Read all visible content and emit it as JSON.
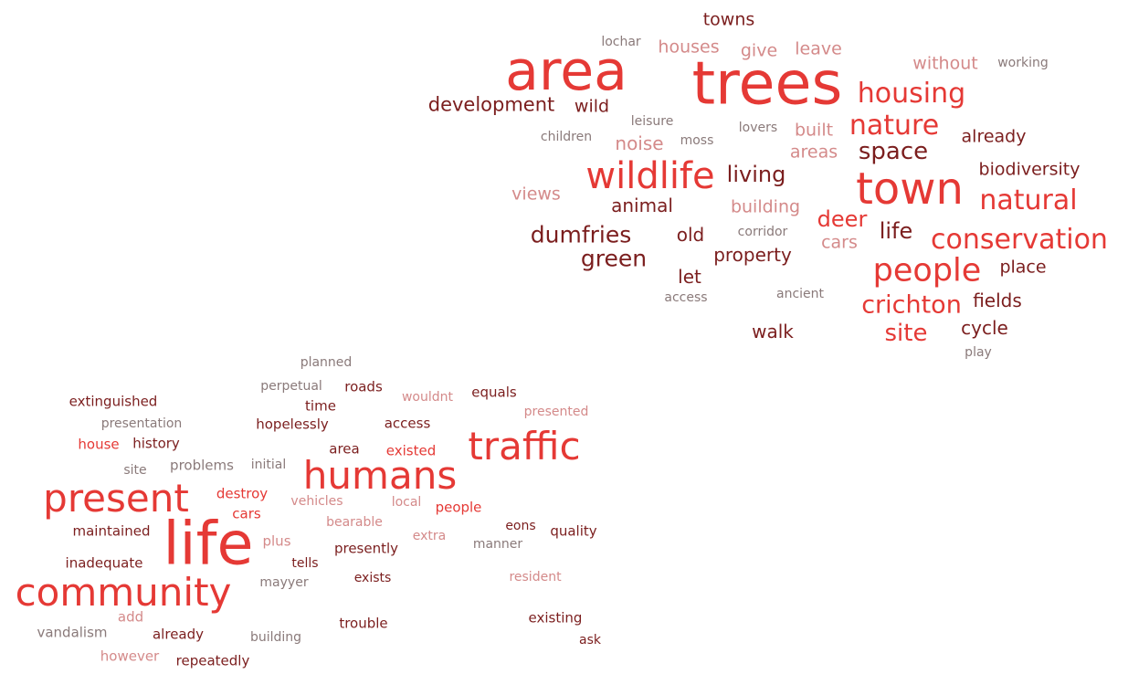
{
  "palette": {
    "red": "#e53935",
    "maroon": "#7b1e1e",
    "pink": "#d48a8a",
    "grey": "#8a7a7a"
  },
  "clusters": [
    {
      "name": "cluster-1",
      "words": [
        {
          "text": "towns",
          "weight": 0.18,
          "tone": "maroon"
        },
        {
          "text": "lochar",
          "weight": 0.1,
          "tone": "grey"
        },
        {
          "text": "houses",
          "weight": 0.22,
          "tone": "pink"
        },
        {
          "text": "give",
          "weight": 0.2,
          "tone": "pink"
        },
        {
          "text": "leave",
          "weight": 0.2,
          "tone": "pink"
        },
        {
          "text": "without",
          "weight": 0.2,
          "tone": "pink"
        },
        {
          "text": "working",
          "weight": 0.1,
          "tone": "grey"
        },
        {
          "text": "area",
          "weight": 0.95,
          "tone": "red"
        },
        {
          "text": "trees",
          "weight": 1.0,
          "tone": "red"
        },
        {
          "text": "housing",
          "weight": 0.4,
          "tone": "red"
        },
        {
          "text": "development",
          "weight": 0.25,
          "tone": "maroon"
        },
        {
          "text": "wild",
          "weight": 0.22,
          "tone": "maroon"
        },
        {
          "text": "leisure",
          "weight": 0.1,
          "tone": "grey"
        },
        {
          "text": "lovers",
          "weight": 0.1,
          "tone": "grey"
        },
        {
          "text": "built",
          "weight": 0.2,
          "tone": "pink"
        },
        {
          "text": "nature",
          "weight": 0.4,
          "tone": "red"
        },
        {
          "text": "already",
          "weight": 0.2,
          "tone": "maroon"
        },
        {
          "text": "children",
          "weight": 0.1,
          "tone": "grey"
        },
        {
          "text": "noise",
          "weight": 0.25,
          "tone": "pink"
        },
        {
          "text": "moss",
          "weight": 0.1,
          "tone": "grey"
        },
        {
          "text": "areas",
          "weight": 0.22,
          "tone": "pink"
        },
        {
          "text": "space",
          "weight": 0.3,
          "tone": "maroon"
        },
        {
          "text": "wildlife",
          "weight": 0.6,
          "tone": "red"
        },
        {
          "text": "living",
          "weight": 0.25,
          "tone": "maroon"
        },
        {
          "text": "town",
          "weight": 0.75,
          "tone": "red"
        },
        {
          "text": "biodiversity",
          "weight": 0.2,
          "tone": "maroon"
        },
        {
          "text": "views",
          "weight": 0.2,
          "tone": "pink"
        },
        {
          "text": "animal",
          "weight": 0.22,
          "tone": "maroon"
        },
        {
          "text": "building",
          "weight": 0.22,
          "tone": "pink"
        },
        {
          "text": "natural",
          "weight": 0.4,
          "tone": "red"
        },
        {
          "text": "deer",
          "weight": 0.3,
          "tone": "red"
        },
        {
          "text": "dumfries",
          "weight": 0.3,
          "tone": "maroon"
        },
        {
          "text": "old",
          "weight": 0.22,
          "tone": "maroon"
        },
        {
          "text": "corridor",
          "weight": 0.1,
          "tone": "grey"
        },
        {
          "text": "life",
          "weight": 0.27,
          "tone": "maroon"
        },
        {
          "text": "conservation",
          "weight": 0.42,
          "tone": "red"
        },
        {
          "text": "cars",
          "weight": 0.2,
          "tone": "pink"
        },
        {
          "text": "green",
          "weight": 0.35,
          "tone": "maroon"
        },
        {
          "text": "property",
          "weight": 0.22,
          "tone": "maroon"
        },
        {
          "text": "people",
          "weight": 0.55,
          "tone": "red"
        },
        {
          "text": "place",
          "weight": 0.2,
          "tone": "maroon"
        },
        {
          "text": "let",
          "weight": 0.22,
          "tone": "maroon"
        },
        {
          "text": "access",
          "weight": 0.1,
          "tone": "grey"
        },
        {
          "text": "ancient",
          "weight": 0.1,
          "tone": "grey"
        },
        {
          "text": "crichton",
          "weight": 0.35,
          "tone": "red"
        },
        {
          "text": "fields",
          "weight": 0.2,
          "tone": "maroon"
        },
        {
          "text": "walk",
          "weight": 0.22,
          "tone": "maroon"
        },
        {
          "text": "site",
          "weight": 0.3,
          "tone": "red"
        },
        {
          "text": "cycle",
          "weight": 0.22,
          "tone": "maroon"
        },
        {
          "text": "play",
          "weight": 0.1,
          "tone": "grey"
        }
      ]
    },
    {
      "name": "cluster-2",
      "words": [
        {
          "text": "planned",
          "weight": 0.1,
          "tone": "grey"
        },
        {
          "text": "perpetual",
          "weight": 0.1,
          "tone": "grey"
        },
        {
          "text": "roads",
          "weight": 0.12,
          "tone": "maroon"
        },
        {
          "text": "wouldnt",
          "weight": 0.12,
          "tone": "pink"
        },
        {
          "text": "equals",
          "weight": 0.12,
          "tone": "maroon"
        },
        {
          "text": "extinguished",
          "weight": 0.12,
          "tone": "maroon"
        },
        {
          "text": "time",
          "weight": 0.12,
          "tone": "maroon"
        },
        {
          "text": "presented",
          "weight": 0.12,
          "tone": "pink"
        },
        {
          "text": "presentation",
          "weight": 0.1,
          "tone": "grey"
        },
        {
          "text": "hopelessly",
          "weight": 0.12,
          "tone": "maroon"
        },
        {
          "text": "access",
          "weight": 0.12,
          "tone": "maroon"
        },
        {
          "text": "house",
          "weight": 0.12,
          "tone": "red"
        },
        {
          "text": "history",
          "weight": 0.12,
          "tone": "maroon"
        },
        {
          "text": "area",
          "weight": 0.1,
          "tone": "maroon"
        },
        {
          "text": "existed",
          "weight": 0.12,
          "tone": "red"
        },
        {
          "text": "traffic",
          "weight": 0.55,
          "tone": "red"
        },
        {
          "text": "site",
          "weight": 0.1,
          "tone": "grey"
        },
        {
          "text": "problems",
          "weight": 0.12,
          "tone": "grey"
        },
        {
          "text": "initial",
          "weight": 0.1,
          "tone": "grey"
        },
        {
          "text": "humans",
          "weight": 0.6,
          "tone": "red"
        },
        {
          "text": "present",
          "weight": 0.6,
          "tone": "red"
        },
        {
          "text": "destroy",
          "weight": 0.12,
          "tone": "red"
        },
        {
          "text": "vehicles",
          "weight": 0.1,
          "tone": "pink"
        },
        {
          "text": "local",
          "weight": 0.1,
          "tone": "pink"
        },
        {
          "text": "people",
          "weight": 0.12,
          "tone": "red"
        },
        {
          "text": "cars",
          "weight": 0.12,
          "tone": "red"
        },
        {
          "text": "bearable",
          "weight": 0.1,
          "tone": "pink"
        },
        {
          "text": "maintained",
          "weight": 0.12,
          "tone": "maroon"
        },
        {
          "text": "life",
          "weight": 1.0,
          "tone": "red"
        },
        {
          "text": "eons",
          "weight": 0.1,
          "tone": "maroon"
        },
        {
          "text": "quality",
          "weight": 0.12,
          "tone": "maroon"
        },
        {
          "text": "plus",
          "weight": 0.12,
          "tone": "pink"
        },
        {
          "text": "extra",
          "weight": 0.1,
          "tone": "pink"
        },
        {
          "text": "manner",
          "weight": 0.1,
          "tone": "grey"
        },
        {
          "text": "presently",
          "weight": 0.12,
          "tone": "maroon"
        },
        {
          "text": "inadequate",
          "weight": 0.12,
          "tone": "maroon"
        },
        {
          "text": "tells",
          "weight": 0.1,
          "tone": "maroon"
        },
        {
          "text": "community",
          "weight": 0.75,
          "tone": "red"
        },
        {
          "text": "mayyer",
          "weight": 0.1,
          "tone": "grey"
        },
        {
          "text": "exists",
          "weight": 0.1,
          "tone": "maroon"
        },
        {
          "text": "resident",
          "weight": 0.1,
          "tone": "pink"
        },
        {
          "text": "add",
          "weight": 0.12,
          "tone": "pink"
        },
        {
          "text": "existing",
          "weight": 0.12,
          "tone": "maroon"
        },
        {
          "text": "trouble",
          "weight": 0.12,
          "tone": "maroon"
        },
        {
          "text": "vandalism",
          "weight": 0.12,
          "tone": "grey"
        },
        {
          "text": "already",
          "weight": 0.12,
          "tone": "maroon"
        },
        {
          "text": "building",
          "weight": 0.12,
          "tone": "grey"
        },
        {
          "text": "ask",
          "weight": 0.1,
          "tone": "maroon"
        },
        {
          "text": "however",
          "weight": 0.12,
          "tone": "pink"
        },
        {
          "text": "repeatedly",
          "weight": 0.12,
          "tone": "maroon"
        }
      ]
    }
  ]
}
